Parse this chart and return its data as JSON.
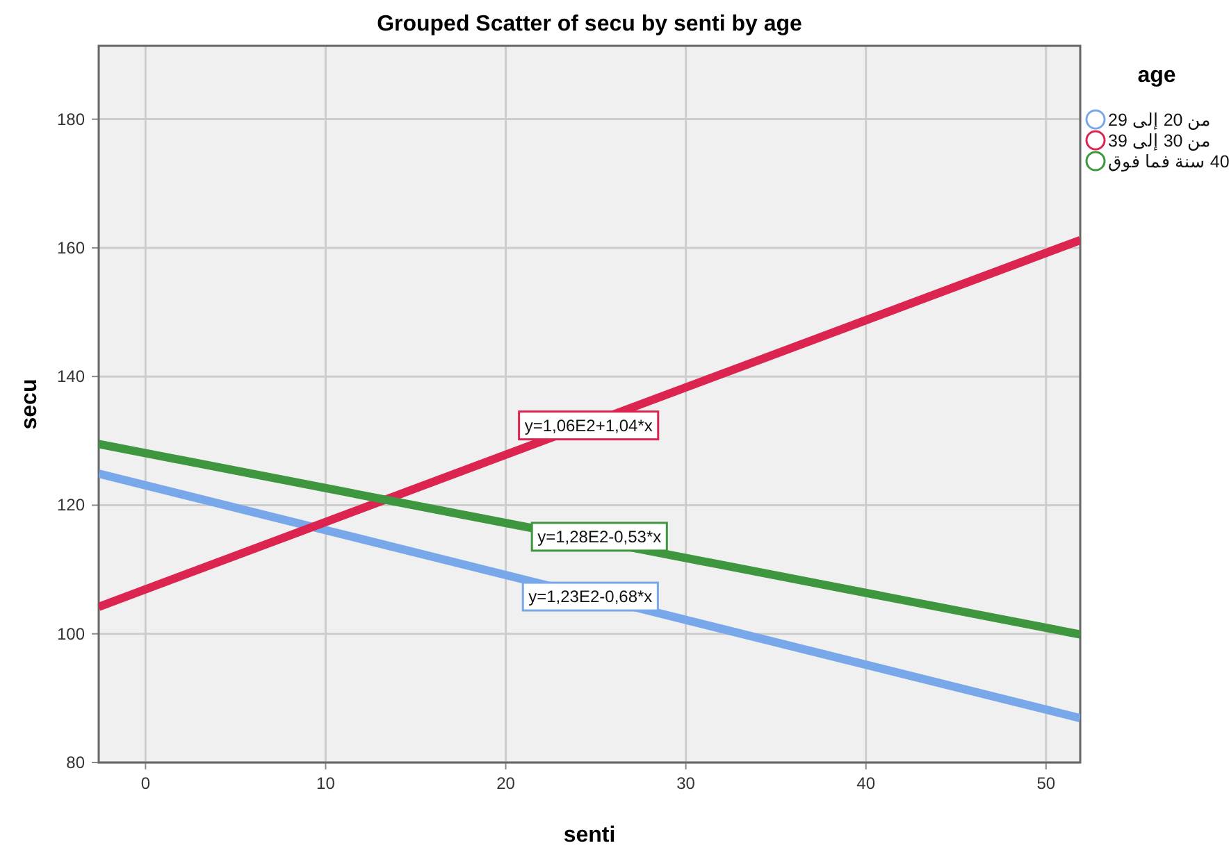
{
  "chart_data": {
    "type": "line",
    "title": "Grouped Scatter of secu by senti by age",
    "xlabel": "senti",
    "ylabel": "secu",
    "legend_title": "age",
    "x": [
      -2.6,
      51.9
    ],
    "series": [
      {
        "name": "من 20 إلى 29",
        "color": "#78a8ea",
        "values": [
          124.9,
          86.9
        ]
      },
      {
        "name": "من 30 إلى 39",
        "color": "#dc2450",
        "values": [
          104.2,
          161.2
        ]
      },
      {
        "name": "40 سنة فما فوق",
        "color": "#3e973e",
        "values": [
          129.5,
          99.9
        ]
      }
    ],
    "annotations": [
      {
        "text": "y=1,23E2-0,68*x",
        "x": 24.7,
        "y": 105.9
      },
      {
        "text": "y=1,06E2+1,04*x",
        "x": 24.6,
        "y": 132.5
      },
      {
        "text": "y=1,28E2-0,53*x",
        "x": 25.2,
        "y": 115.2
      }
    ],
    "xlim": [
      -2.6,
      51.9
    ],
    "ylim": [
      80,
      191.4
    ],
    "xticks": [
      0,
      10,
      20,
      30,
      40,
      50
    ],
    "yticks": [
      80,
      100,
      120,
      140,
      160,
      180
    ],
    "grid": true,
    "legend": "top right",
    "line_style": "solid"
  }
}
